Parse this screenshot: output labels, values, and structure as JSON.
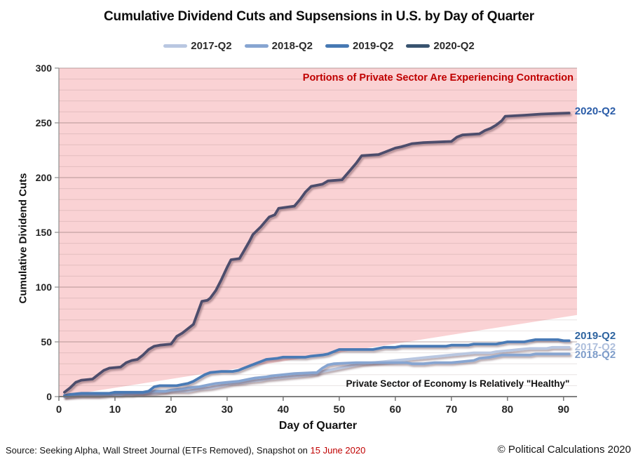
{
  "chart_data": {
    "type": "line",
    "title": "Cumulative Dividend Cuts and Supsensions in U.S. by Day of Quarter",
    "xlabel": "Day of Quarter",
    "ylabel": "Cumulative Dividend Cuts",
    "xlim": [
      0,
      92.4
    ],
    "ylim": [
      0,
      300
    ],
    "x_ticks": [
      0,
      10,
      20,
      30,
      40,
      50,
      60,
      70,
      80,
      90
    ],
    "y_ticks": [
      0,
      50,
      100,
      150,
      200,
      250,
      300
    ],
    "grid": {
      "minor_step": 10,
      "major_step": 50,
      "vertical": false
    },
    "legend_position": "top",
    "background_region": {
      "name": "contraction-zone",
      "fill": "#fad2d4",
      "boundary_line": [
        [
          0,
          0
        ],
        [
          92.4,
          74.5
        ]
      ]
    },
    "annotations": [
      {
        "id": "contraction",
        "text": "Portions of Private Sector Are Experiencing Contraction",
        "color": "#c00000"
      },
      {
        "id": "healthy",
        "text": "Private Sector of Economy Is Relatively \"Healthy\"",
        "color": "#141414"
      }
    ],
    "series": [
      {
        "name": "2017-Q2",
        "color": "#b9c7e1",
        "legend_color": "#b9c7e1",
        "label_color": "#aebfdc",
        "label_dy": 0,
        "points": [
          [
            1,
            0
          ],
          [
            4,
            1
          ],
          [
            8,
            1
          ],
          [
            9,
            2
          ],
          [
            13,
            2
          ],
          [
            14,
            3
          ],
          [
            17,
            3
          ],
          [
            18,
            4
          ],
          [
            20,
            5
          ],
          [
            23,
            5
          ],
          [
            24,
            6
          ],
          [
            25,
            7
          ],
          [
            27,
            8
          ],
          [
            28,
            9
          ],
          [
            29,
            10
          ],
          [
            30,
            11
          ],
          [
            31,
            12
          ],
          [
            33,
            13
          ],
          [
            34,
            14
          ],
          [
            36,
            15
          ],
          [
            37,
            16
          ],
          [
            39,
            17
          ],
          [
            41,
            18
          ],
          [
            43,
            19
          ],
          [
            45,
            20
          ],
          [
            46,
            21
          ],
          [
            47,
            23
          ],
          [
            48,
            24
          ],
          [
            49,
            25
          ],
          [
            50,
            26
          ],
          [
            52,
            28
          ],
          [
            54,
            30
          ],
          [
            56,
            31
          ],
          [
            58,
            32
          ],
          [
            60,
            33
          ],
          [
            62,
            34
          ],
          [
            64,
            35
          ],
          [
            66,
            36
          ],
          [
            68,
            37
          ],
          [
            70,
            38
          ],
          [
            72,
            39
          ],
          [
            74,
            40
          ],
          [
            77,
            40
          ],
          [
            78,
            41
          ],
          [
            80,
            42
          ],
          [
            82,
            43
          ],
          [
            84,
            44
          ],
          [
            87,
            44
          ],
          [
            88,
            45
          ],
          [
            91,
            45
          ]
        ]
      },
      {
        "name": "2018-Q2",
        "color": "#87a5d1",
        "legend_color": "#87a5d1",
        "label_color": "#7d9cc9",
        "label_dy": 2,
        "points": [
          [
            1,
            0
          ],
          [
            3,
            1
          ],
          [
            7,
            1
          ],
          [
            8,
            2
          ],
          [
            11,
            2
          ],
          [
            12,
            3
          ],
          [
            15,
            3
          ],
          [
            16,
            4
          ],
          [
            17,
            5
          ],
          [
            19,
            5
          ],
          [
            20,
            6
          ],
          [
            22,
            7
          ],
          [
            23,
            8
          ],
          [
            25,
            9
          ],
          [
            26,
            10
          ],
          [
            27,
            11
          ],
          [
            28,
            12
          ],
          [
            30,
            13
          ],
          [
            32,
            14
          ],
          [
            33,
            15
          ],
          [
            34,
            16
          ],
          [
            35,
            17
          ],
          [
            37,
            18
          ],
          [
            38,
            19
          ],
          [
            40,
            20
          ],
          [
            42,
            21
          ],
          [
            46,
            22
          ],
          [
            47,
            26
          ],
          [
            48,
            29
          ],
          [
            49,
            30
          ],
          [
            53,
            31
          ],
          [
            62,
            31
          ],
          [
            63,
            30
          ],
          [
            65,
            30
          ],
          [
            67,
            31
          ],
          [
            70,
            31
          ],
          [
            72,
            32
          ],
          [
            74,
            33
          ],
          [
            75,
            35
          ],
          [
            77,
            36
          ],
          [
            78,
            37
          ],
          [
            79,
            38
          ],
          [
            84,
            38
          ],
          [
            85,
            39
          ],
          [
            91,
            39
          ]
        ]
      },
      {
        "name": "2019-Q2",
        "color": "#4a7ab5",
        "legend_color": "#4779b3",
        "label_color": "#2e64a0",
        "label_dy": -6,
        "points": [
          [
            1,
            1
          ],
          [
            2,
            2
          ],
          [
            4,
            3
          ],
          [
            9,
            3
          ],
          [
            10,
            4
          ],
          [
            15,
            4
          ],
          [
            16,
            5
          ],
          [
            17,
            9
          ],
          [
            18,
            10
          ],
          [
            21,
            10
          ],
          [
            22,
            11
          ],
          [
            23,
            12
          ],
          [
            24,
            14
          ],
          [
            25,
            17
          ],
          [
            26,
            20
          ],
          [
            27,
            22
          ],
          [
            29,
            23
          ],
          [
            31,
            23
          ],
          [
            32,
            24
          ],
          [
            33,
            26
          ],
          [
            34,
            28
          ],
          [
            35,
            30
          ],
          [
            36,
            32
          ],
          [
            37,
            34
          ],
          [
            39,
            35
          ],
          [
            40,
            36
          ],
          [
            44,
            36
          ],
          [
            45,
            37
          ],
          [
            47,
            38
          ],
          [
            48,
            39
          ],
          [
            49,
            41
          ],
          [
            50,
            43
          ],
          [
            56,
            43
          ],
          [
            57,
            44
          ],
          [
            58,
            45
          ],
          [
            60,
            45
          ],
          [
            61,
            46
          ],
          [
            69,
            46
          ],
          [
            70,
            47
          ],
          [
            73,
            47
          ],
          [
            74,
            48
          ],
          [
            78,
            48
          ],
          [
            79,
            49
          ],
          [
            80,
            50
          ],
          [
            83,
            50
          ],
          [
            84,
            51
          ],
          [
            85,
            52
          ],
          [
            89,
            52
          ],
          [
            90,
            51
          ],
          [
            91,
            51
          ]
        ]
      },
      {
        "name": "2020-Q2",
        "color": "#4e4d6c",
        "legend_color": "#38536f",
        "label_color": "#2a5ca8",
        "label_dy": -2,
        "points": [
          [
            1,
            4
          ],
          [
            2,
            8
          ],
          [
            3,
            13
          ],
          [
            4,
            15
          ],
          [
            6,
            16
          ],
          [
            7,
            20
          ],
          [
            8,
            24
          ],
          [
            9,
            26
          ],
          [
            11,
            27
          ],
          [
            12,
            31
          ],
          [
            13,
            33
          ],
          [
            14,
            34
          ],
          [
            15,
            38
          ],
          [
            16,
            43
          ],
          [
            17,
            46
          ],
          [
            18,
            47
          ],
          [
            20,
            48
          ],
          [
            21,
            55
          ],
          [
            22,
            58
          ],
          [
            23,
            62
          ],
          [
            24,
            66
          ],
          [
            24.5,
            73
          ],
          [
            25,
            80
          ],
          [
            25.5,
            87
          ],
          [
            26.5,
            88
          ],
          [
            27,
            90
          ],
          [
            28,
            97
          ],
          [
            29,
            107
          ],
          [
            30,
            118
          ],
          [
            30.7,
            125
          ],
          [
            32.2,
            126
          ],
          [
            33,
            133
          ],
          [
            34,
            142
          ],
          [
            34.6,
            148
          ],
          [
            36,
            155
          ],
          [
            37,
            161
          ],
          [
            37.5,
            164
          ],
          [
            38.5,
            166
          ],
          [
            39.2,
            172
          ],
          [
            42,
            174
          ],
          [
            43,
            180
          ],
          [
            44,
            187
          ],
          [
            45,
            192
          ],
          [
            47,
            194
          ],
          [
            48,
            197
          ],
          [
            50.5,
            198
          ],
          [
            51,
            201
          ],
          [
            52,
            207
          ],
          [
            53,
            213
          ],
          [
            54,
            220
          ],
          [
            57,
            221
          ],
          [
            58,
            223
          ],
          [
            60,
            227
          ],
          [
            61,
            228
          ],
          [
            63,
            231
          ],
          [
            65,
            232
          ],
          [
            70,
            233
          ],
          [
            71,
            237
          ],
          [
            72,
            239
          ],
          [
            75,
            240
          ],
          [
            76,
            243
          ],
          [
            77,
            245
          ],
          [
            78,
            248
          ],
          [
            79,
            252
          ],
          [
            79.6,
            256
          ],
          [
            83,
            257
          ],
          [
            86,
            258
          ],
          [
            91,
            259
          ]
        ]
      }
    ]
  },
  "footer": {
    "source_prefix": "Source: Seeking Alpha, Wall Street Journal (ETFs Removed), Snapshot on ",
    "source_date": "15 June 2020",
    "copyright": "© Political Calculations 2020"
  }
}
